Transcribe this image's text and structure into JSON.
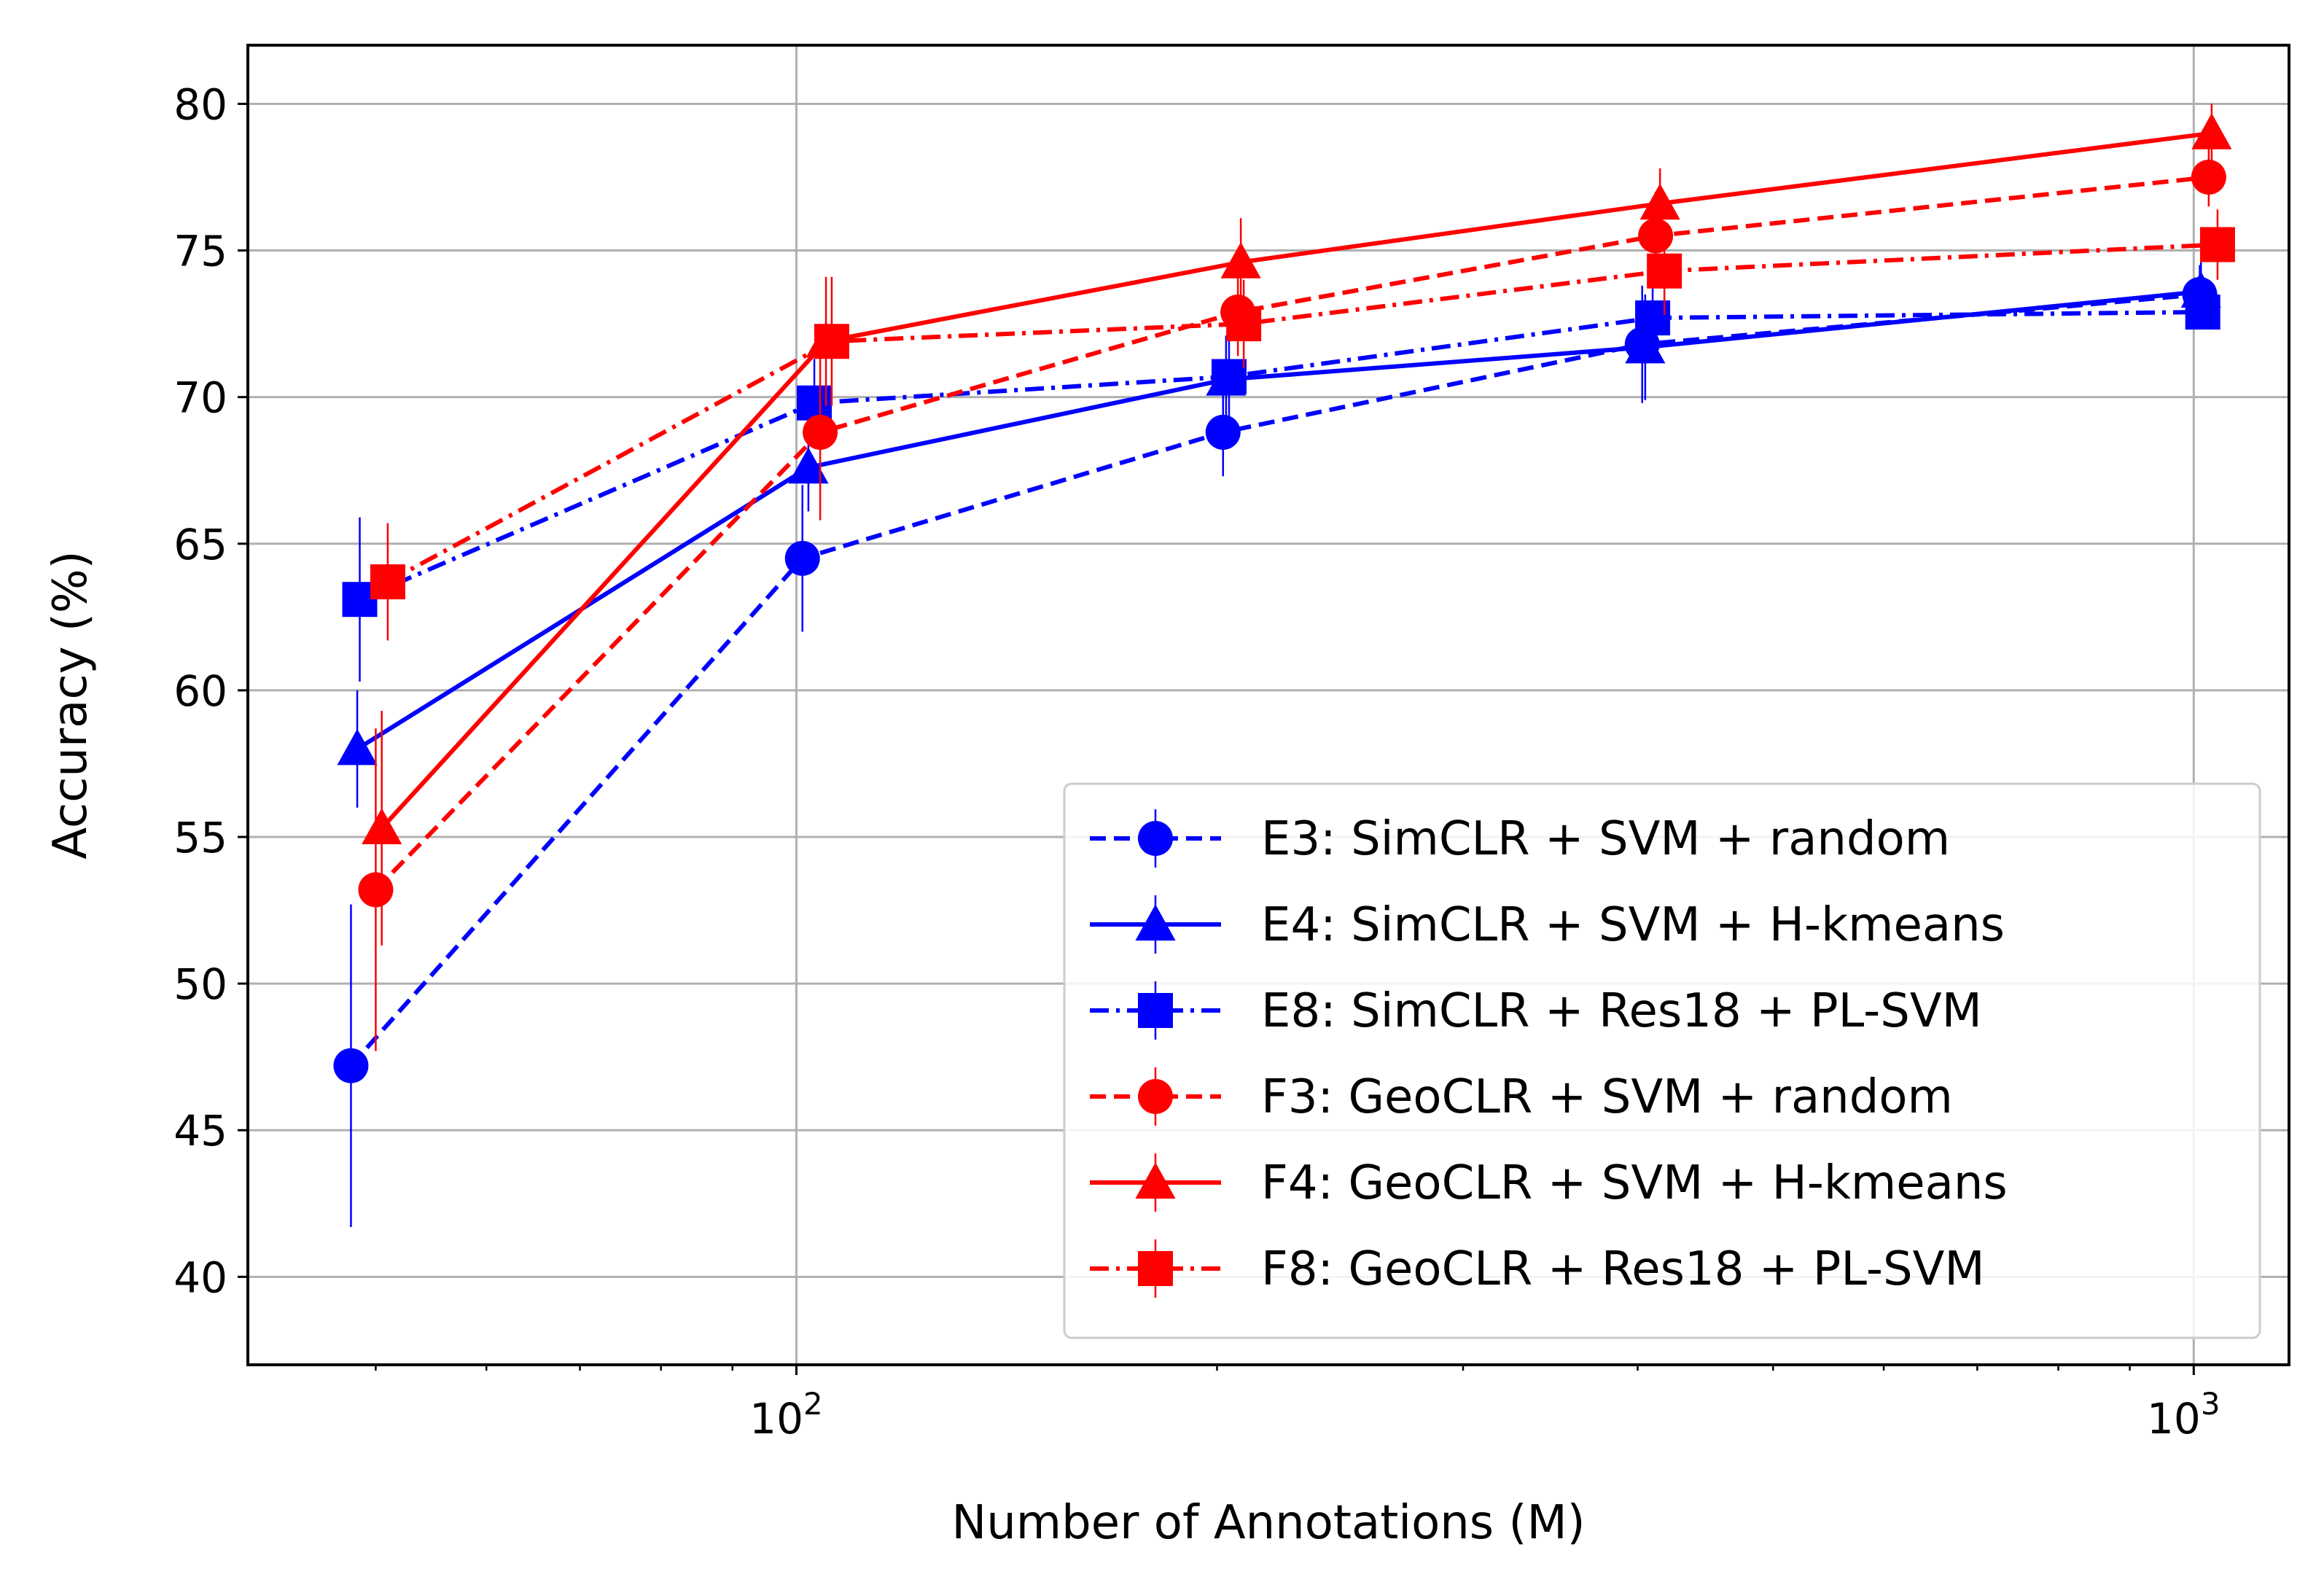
{
  "chart_data": {
    "type": "line",
    "xscale": "log",
    "xlabel": "Number of Annotations (M)",
    "ylabel": "Accuracy (%)",
    "xlim": [
      40.5,
      1170
    ],
    "ylim": [
      37,
      82
    ],
    "grid": true,
    "legend_position": "lower-right",
    "x_ticks": [
      {
        "value": 100,
        "base": "10",
        "exp": "2"
      },
      {
        "value": 1000,
        "base": "10",
        "exp": "3"
      }
    ],
    "y_ticks": [
      {
        "value": 40,
        "label": "40"
      },
      {
        "value": 45,
        "label": "45"
      },
      {
        "value": 50,
        "label": "50"
      },
      {
        "value": 55,
        "label": "55"
      },
      {
        "value": 60,
        "label": "60"
      },
      {
        "value": 65,
        "label": "65"
      },
      {
        "value": 70,
        "label": "70"
      },
      {
        "value": 75,
        "label": "75"
      },
      {
        "value": 80,
        "label": "80"
      }
    ],
    "series": [
      {
        "name": "E3: SimCLR + SVM + random",
        "color": "#0000ff",
        "dash": "dashed",
        "marker": "circle",
        "x": [
          48,
          101,
          202,
          403,
          1010
        ],
        "y": [
          47.2,
          64.5,
          68.8,
          71.8,
          73.5
        ],
        "err": [
          5.5,
          2.5,
          1.5,
          2.0,
          1.0
        ]
      },
      {
        "name": "E4: SimCLR + SVM + H-kmeans",
        "color": "#0000ff",
        "dash": "solid",
        "marker": "triangle",
        "x": [
          48.5,
          102,
          203,
          405,
          1012
        ],
        "y": [
          58.0,
          67.6,
          70.6,
          71.7,
          73.6
        ],
        "err": [
          2.0,
          1.5,
          1.5,
          1.8,
          1.0
        ]
      },
      {
        "name": "E8: SimCLR + Res18 + PL-SVM",
        "color": "#0000ff",
        "dash": "dashdot",
        "marker": "square",
        "x": [
          48.7,
          103,
          204,
          410,
          1015
        ],
        "y": [
          63.1,
          69.8,
          70.7,
          72.7,
          72.9
        ],
        "err": [
          2.8,
          1.5,
          1.5,
          1.5,
          0.5
        ]
      },
      {
        "name": "F3: GeoCLR + SVM + random",
        "color": "#ff0000",
        "dash": "dashed",
        "marker": "circle",
        "x": [
          50,
          104,
          207,
          412,
          1025
        ],
        "y": [
          53.2,
          68.8,
          72.9,
          75.5,
          77.5
        ],
        "err": [
          5.5,
          3.0,
          1.5,
          1.5,
          1.0
        ]
      },
      {
        "name": "F4: GeoCLR + SVM + H-kmeans",
        "color": "#ff0000",
        "dash": "solid",
        "marker": "triangle",
        "x": [
          50.5,
          105,
          208,
          415,
          1030
        ],
        "y": [
          55.3,
          71.9,
          74.6,
          76.6,
          79.0
        ],
        "err": [
          4.0,
          2.2,
          1.5,
          1.2,
          1.0
        ]
      },
      {
        "name": "F8: GeoCLR + Res18 + PL-SVM",
        "color": "#ff0000",
        "dash": "dashdot",
        "marker": "square",
        "x": [
          51,
          106,
          209,
          418,
          1040
        ],
        "y": [
          63.7,
          71.9,
          72.5,
          74.3,
          75.2
        ],
        "err": [
          2.0,
          2.2,
          1.5,
          1.5,
          1.2
        ]
      }
    ]
  }
}
